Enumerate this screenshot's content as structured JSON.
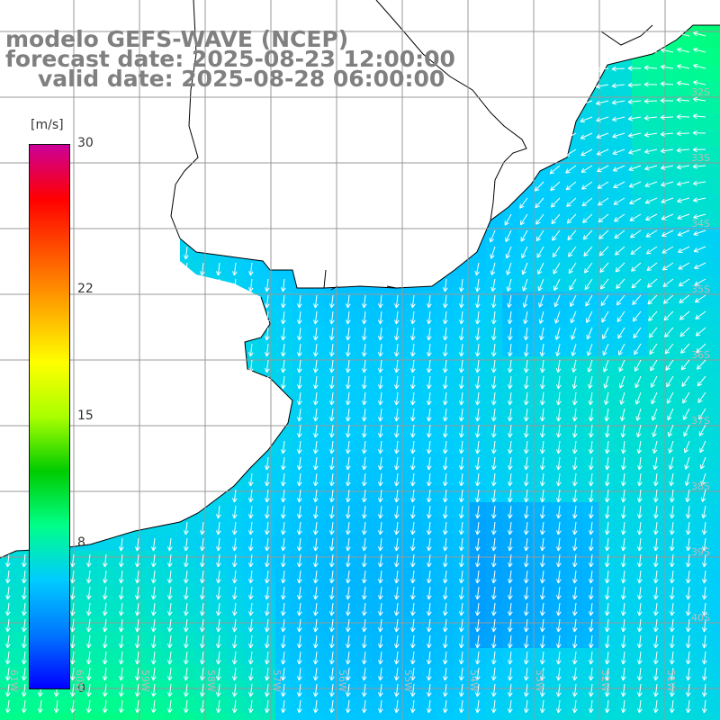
{
  "title": {
    "line1": "modelo GEFS-WAVE (NCEP)",
    "line2": "forecast date: 2025-08-23 12:00:00",
    "line3": "valid date: 2025-08-28 06:00:00"
  },
  "legend": {
    "unit": "[m/s]",
    "ticks": [
      {
        "label": "30",
        "value": 30
      },
      {
        "label": "22",
        "value": 22
      },
      {
        "label": "15",
        "value": 15
      },
      {
        "label": "8",
        "value": 8
      },
      {
        "label": "0",
        "value": 0
      }
    ],
    "colors": [
      "#0000ff",
      "#0077ff",
      "#00ccff",
      "#00ff88",
      "#00cc00",
      "#aaff00",
      "#ffff00",
      "#ffaa00",
      "#ff5500",
      "#ff0000",
      "#cc0099"
    ]
  },
  "axes": {
    "lat_labels": [
      "32S",
      "33S",
      "34S",
      "35S",
      "36S",
      "37S",
      "38S",
      "39S",
      "40S"
    ],
    "lon_labels": [
      "61W",
      "60W",
      "59W",
      "58W",
      "57W",
      "56W",
      "55W",
      "54W",
      "53W",
      "52W",
      "51W"
    ]
  },
  "map": {
    "variable": "wind speed [m/s] with wind direction arrows",
    "land_color": "#ffffff",
    "coast_color": "#000000",
    "grid_color": "#999999"
  }
}
